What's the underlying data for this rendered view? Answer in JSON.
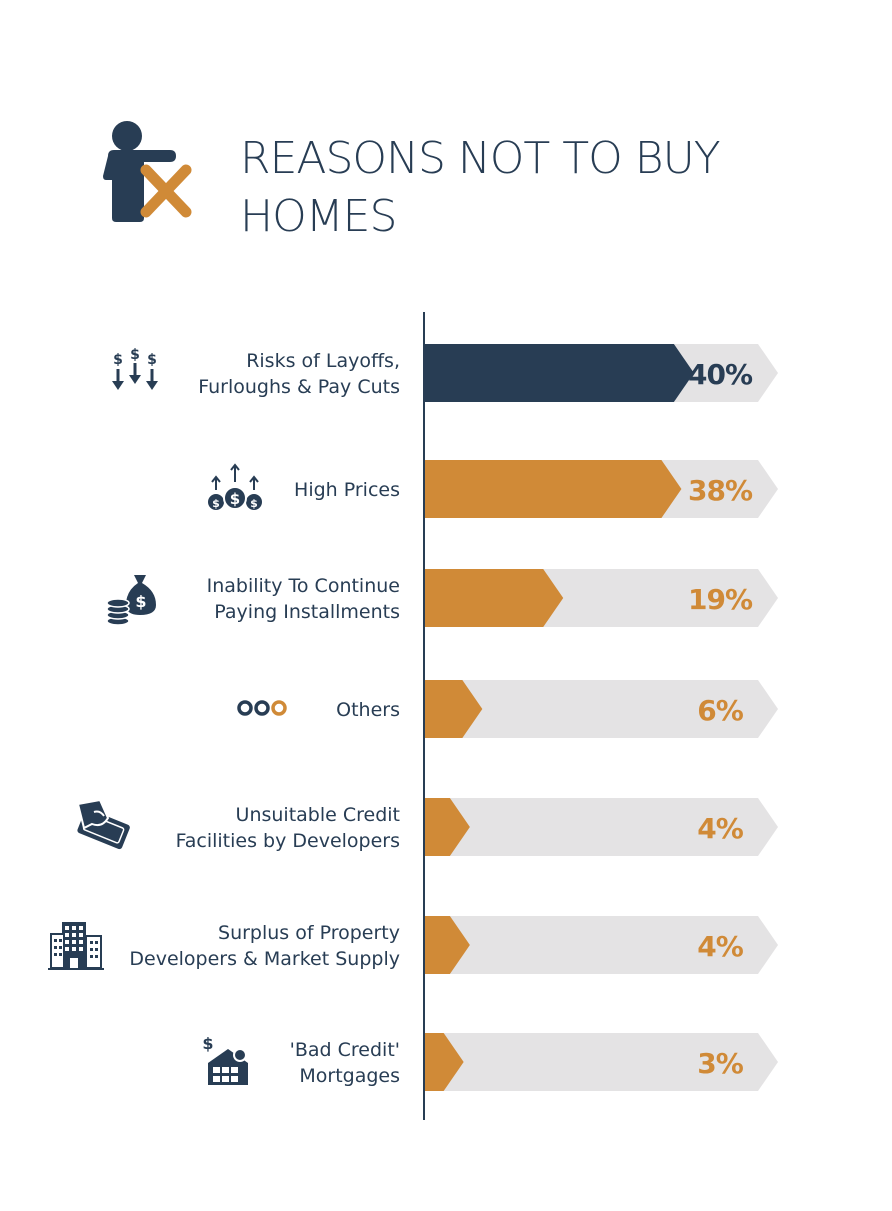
{
  "title_lines": [
    "REASONS NOT TO BUY",
    "HOMES"
  ],
  "colors": {
    "primary": "#283d54",
    "accent": "#d08a37",
    "track": "#e4e3e4",
    "background": "#ffffff"
  },
  "chart_data": {
    "type": "bar",
    "orientation": "horizontal",
    "title": "REASONS NOT TO BUY HOMES",
    "categories": [
      "Risks of Layoffs, Furloughs & Pay Cuts",
      "High Prices",
      "Inability To Continue Paying Installments",
      "Others",
      "Unsuitable Credit Facilities by Developers",
      "Surplus of Property Developers & Market Supply",
      "'Bad Credit' Mortgages"
    ],
    "values": [
      40,
      38,
      19,
      6,
      4,
      4,
      3
    ],
    "unit": "%",
    "xlim": [
      0,
      45
    ],
    "grid": false,
    "legend": "none"
  },
  "rows": [
    {
      "label_lines": [
        "Risks of Layoffs,",
        "Furloughs & Pay Cuts"
      ],
      "value_label": "40%",
      "icon": "dollar-down-arrows-icon",
      "highlight": true
    },
    {
      "label_lines": [
        "High Prices"
      ],
      "value_label": "38%",
      "icon": "coins-up-arrows-icon",
      "highlight": false
    },
    {
      "label_lines": [
        "Inability To Continue",
        "Paying Installments"
      ],
      "value_label": "19%",
      "icon": "money-bag-coins-icon",
      "highlight": false
    },
    {
      "label_lines": [
        "Others"
      ],
      "value_label": "6%",
      "icon": "three-dots-icon",
      "highlight": false
    },
    {
      "label_lines": [
        "Unsuitable Credit",
        "Facilities by Developers"
      ],
      "value_label": "4%",
      "icon": "hand-banknote-icon",
      "highlight": false
    },
    {
      "label_lines": [
        "Surplus of Property",
        "Developers & Market Supply"
      ],
      "value_label": "4%",
      "icon": "buildings-icon",
      "highlight": false
    },
    {
      "label_lines": [
        "'Bad Credit'",
        "Mortgages"
      ],
      "value_label": "3%",
      "icon": "house-dollar-icon",
      "highlight": false
    }
  ]
}
